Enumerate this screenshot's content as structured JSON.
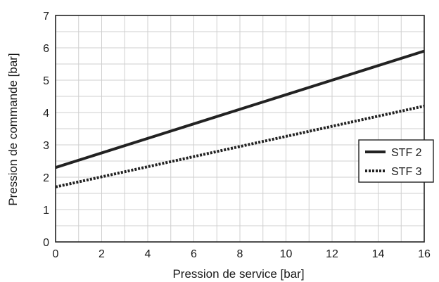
{
  "chart_data": {
    "type": "line",
    "title": "",
    "xlabel": "Pression de service [bar]",
    "ylabel": "Pression de commande [bar]",
    "xlim": [
      0,
      16
    ],
    "ylim": [
      0,
      7
    ],
    "x_ticks": [
      "0",
      "2",
      "4",
      "6",
      "8",
      "10",
      "12",
      "14",
      "16"
    ],
    "y_ticks": [
      "0",
      "1",
      "2",
      "3",
      "4",
      "5",
      "6",
      "7"
    ],
    "grid": true,
    "legend_position": "right",
    "series": [
      {
        "name": "STF 2",
        "style": "solid",
        "color": "#222222",
        "x": [
          0,
          16
        ],
        "y": [
          2.3,
          5.9
        ]
      },
      {
        "name": "STF 3",
        "style": "dotted",
        "color": "#222222",
        "x": [
          0,
          16
        ],
        "y": [
          1.7,
          4.2
        ]
      }
    ]
  }
}
